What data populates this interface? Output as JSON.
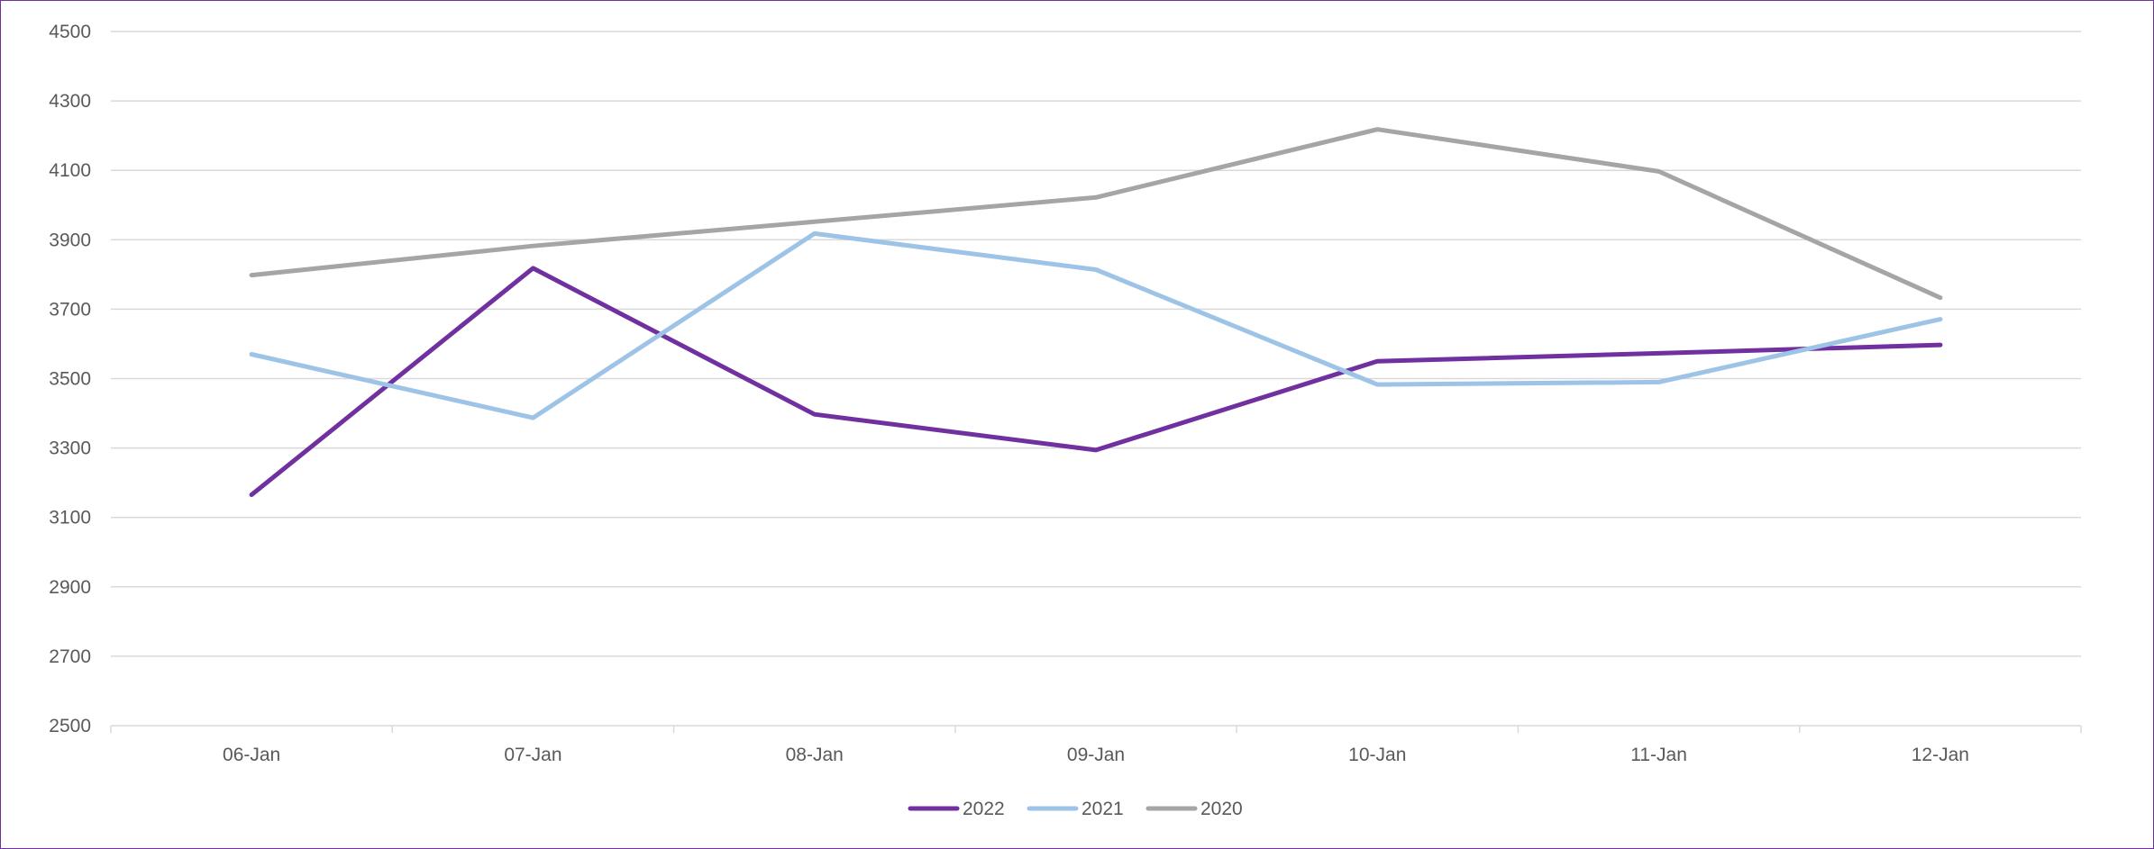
{
  "chart_data": {
    "type": "line",
    "title": "",
    "xlabel": "",
    "ylabel": "",
    "categories": [
      "06-Jan",
      "07-Jan",
      "08-Jan",
      "09-Jan",
      "10-Jan",
      "11-Jan",
      "12-Jan"
    ],
    "ylim": [
      2500,
      4500
    ],
    "yticks": [
      2500,
      2700,
      2900,
      3100,
      3300,
      3500,
      3700,
      3900,
      4100,
      4300,
      4500
    ],
    "grid": true,
    "legend": "bottom-center",
    "series": [
      {
        "name": "2022",
        "color": "#7030a0",
        "values": [
          3165,
          3818,
          3397,
          3294,
          3550,
          3573,
          3597
        ]
      },
      {
        "name": "2021",
        "color": "#9dc3e6",
        "values": [
          3570,
          3387,
          3918,
          3814,
          3483,
          3490,
          3671
        ]
      },
      {
        "name": "2020",
        "color": "#a5a5a5",
        "values": [
          3798,
          3882,
          3952,
          4022,
          4218,
          4097,
          3733
        ]
      }
    ]
  }
}
